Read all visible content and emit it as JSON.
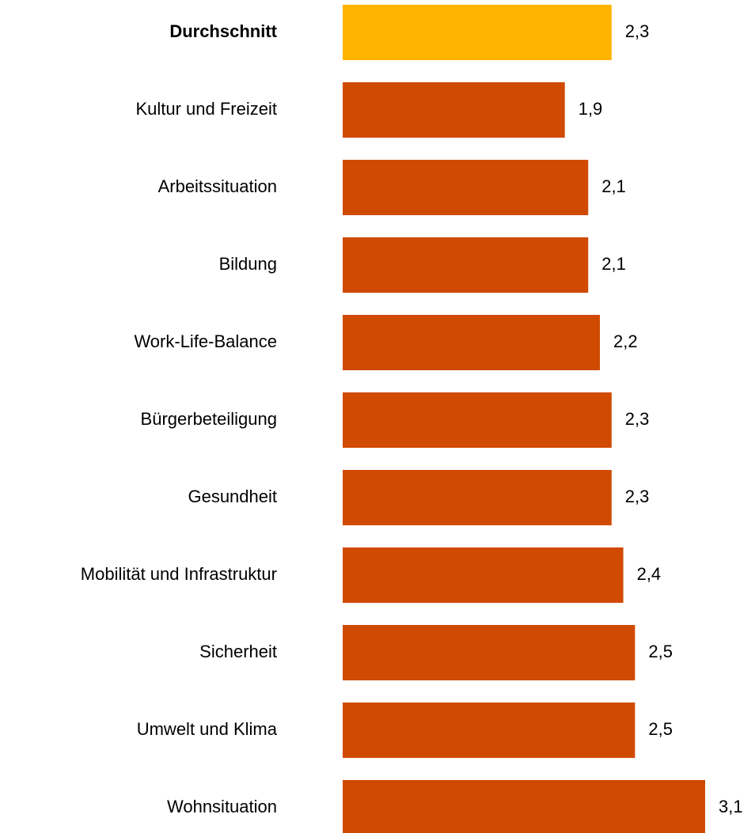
{
  "chart_data": {
    "type": "bar",
    "orientation": "horizontal",
    "categories": [
      "Durchschnitt",
      "Kultur und Freizeit",
      "Arbeitssituation",
      "Bildung",
      "Work-Life-Balance",
      "Bürgerbeteiligung",
      "Gesundheit",
      "Mobilität und Infrastruktur",
      "Sicherheit",
      "Umwelt und Klima",
      "Wohnsituation"
    ],
    "values": [
      2.3,
      1.9,
      2.1,
      2.1,
      2.2,
      2.3,
      2.3,
      2.4,
      2.5,
      2.5,
      3.1
    ],
    "value_labels": [
      "2,3",
      "1,9",
      "2,1",
      "2,1",
      "2,2",
      "2,3",
      "2,3",
      "2,4",
      "2,5",
      "2,5",
      "3,1"
    ],
    "colors": [
      "#FFB400",
      "#D04A02",
      "#D04A02",
      "#D04A02",
      "#D04A02",
      "#D04A02",
      "#D04A02",
      "#D04A02",
      "#D04A02",
      "#D04A02",
      "#D04A02"
    ]
  }
}
